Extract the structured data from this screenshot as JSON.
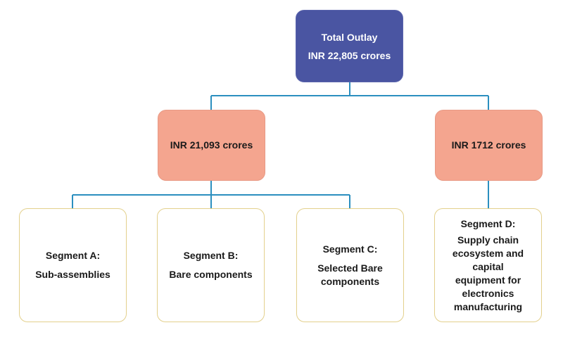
{
  "colors": {
    "total": "#4a55a2",
    "allocation": "#f4a58f",
    "segment_border": "#e3d08c",
    "connector": "#2b8fbf"
  },
  "total": {
    "title": "Total Outlay",
    "amount": "INR 22,805 crores"
  },
  "allocations": [
    {
      "amount": "INR 21,093 crores"
    },
    {
      "amount": "INR 1712 crores"
    }
  ],
  "segments": [
    {
      "title": "Segment A:",
      "description": "Sub-assemblies"
    },
    {
      "title": "Segment B:",
      "description": "Bare components"
    },
    {
      "title": "Segment C:",
      "description": "Selected Bare components"
    },
    {
      "title": "Segment D:",
      "description": "Supply chain ecosystem and capital equipment for electronics manufacturing"
    }
  ]
}
